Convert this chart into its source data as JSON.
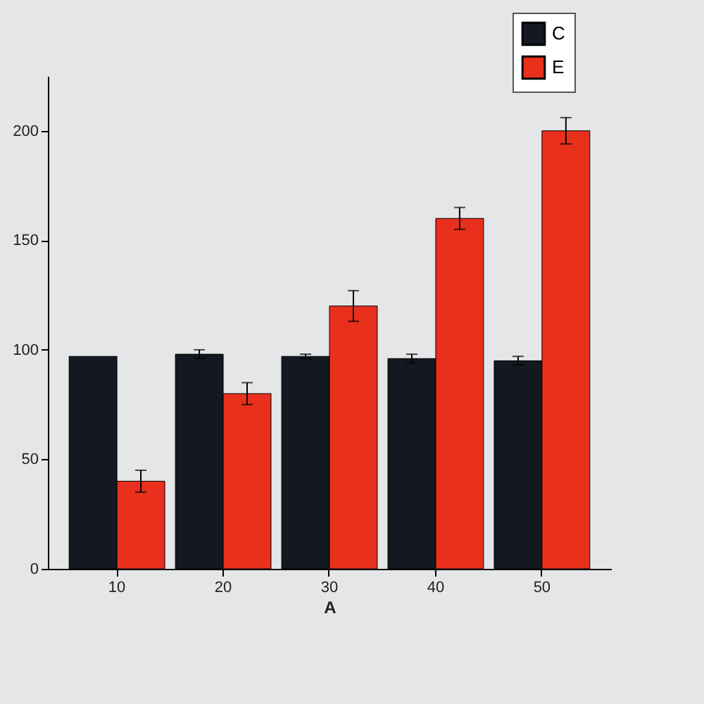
{
  "chart_data": {
    "type": "bar",
    "xlabel": "A",
    "categories": [
      "10",
      "20",
      "30",
      "40",
      "50"
    ],
    "series": [
      {
        "name": "C",
        "color": "#141820",
        "values": [
          97,
          98,
          97,
          96,
          95
        ],
        "errors": [
          null,
          2,
          1,
          2,
          2
        ]
      },
      {
        "name": "E",
        "color": "#e8301c",
        "values": [
          40,
          80,
          120,
          160,
          200
        ],
        "errors": [
          5,
          5,
          7,
          5,
          6
        ]
      }
    ],
    "ylim": [
      0,
      225
    ],
    "yticks": [
      0,
      50,
      100,
      150,
      200
    ],
    "grid": false,
    "legend": "top right"
  }
}
